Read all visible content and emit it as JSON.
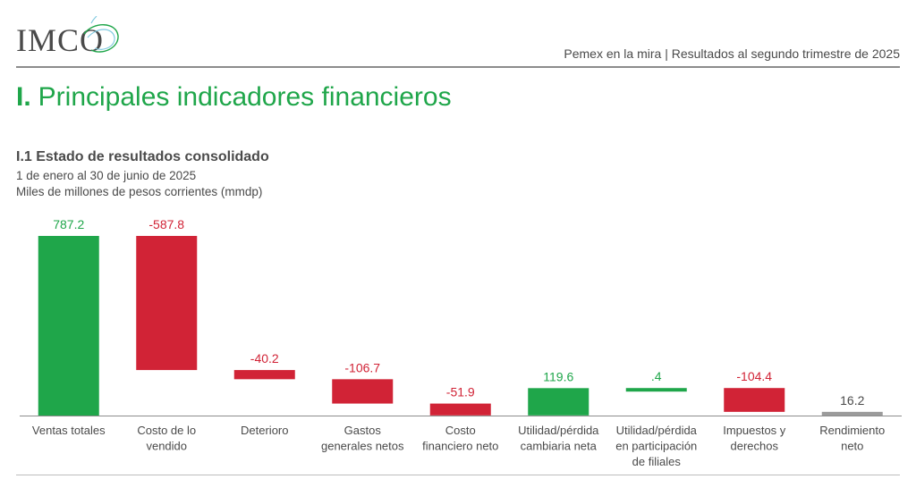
{
  "header": {
    "logo_text": "IMCO",
    "report_title": "Pemex en la mira | Resultados al segundo trimestre de 2025"
  },
  "section": {
    "number": "I.",
    "title": "Principales indicadores financieros"
  },
  "chart_data": {
    "type": "bar",
    "subtype": "waterfall",
    "title": "I.1 Estado de resultados consolidado",
    "subtitle_lines": [
      "1 de enero al 30 de junio de 2025",
      "Miles de millones de pesos corrientes (mmdp)"
    ],
    "categories": [
      [
        "Ventas totales"
      ],
      [
        "Costo de lo",
        "vendido"
      ],
      [
        "Deterioro"
      ],
      [
        "Gastos",
        "generales netos"
      ],
      [
        "Costo",
        "financiero neto"
      ],
      [
        "Utilidad/pérdida",
        "cambiaria neta"
      ],
      [
        "Utilidad/pérdida",
        "en participación",
        "de filiales"
      ],
      [
        "Impuestos y",
        "derechos"
      ],
      [
        "Rendimiento",
        "neto"
      ]
    ],
    "values": [
      787.2,
      -587.8,
      -40.2,
      -106.7,
      -51.9,
      119.6,
      0.4,
      -104.4,
      16.2
    ],
    "value_labels": [
      "787.2",
      "-587.8",
      "-40.2",
      "-106.7",
      "-51.9",
      "119.6",
      ".4",
      "-104.4",
      "16.2"
    ],
    "bar_kind": [
      "increase",
      "decrease",
      "decrease",
      "decrease",
      "decrease",
      "increase",
      "increase",
      "decrease",
      "total"
    ],
    "colors": {
      "increase": "#1fa64a",
      "decrease": "#d12336",
      "total": "#9b9b9b",
      "axis": "#8c8c8c",
      "text": "#4a4a4a"
    },
    "ylim": [
      0,
      787.2
    ]
  }
}
